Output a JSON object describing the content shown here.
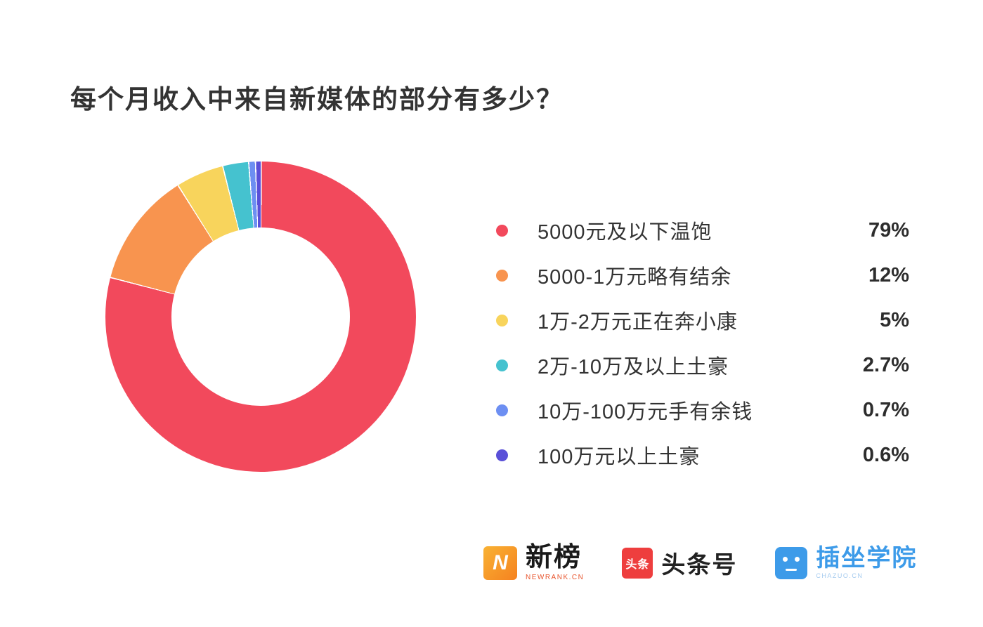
{
  "title": "每个月收入中来自新媒体的部分有多少？",
  "chart_data": {
    "type": "pie",
    "donut": true,
    "start_angle": "top",
    "direction": "clockwise",
    "legend_position": "right",
    "title": "每个月收入中来自新媒体的部分有多少？",
    "segments": [
      {
        "label": "5000元及以下温饱",
        "value": 79,
        "display": "79%",
        "color": "#F2495C"
      },
      {
        "label": "5000-1万元略有结余",
        "value": 12,
        "display": "12%",
        "color": "#F8944F"
      },
      {
        "label": "1万-2万元正在奔小康",
        "value": 5,
        "display": "5%",
        "color": "#F8D45C"
      },
      {
        "label": "2万-10万及以上土豪",
        "value": 2.7,
        "display": "2.7%",
        "color": "#45C2CF"
      },
      {
        "label": "10万-100万元手有余钱",
        "value": 0.7,
        "display": "0.7%",
        "color": "#6D8FF2"
      },
      {
        "label": "100万元以上土豪",
        "value": 0.6,
        "display": "0.6%",
        "color": "#5A50D8"
      }
    ]
  },
  "footer": {
    "logos": [
      {
        "name": "newrank",
        "icon_letter": "N",
        "text": "新榜",
        "subtext": "NEWRANK.CN"
      },
      {
        "name": "toutiao",
        "badge": "头条",
        "text": "头条号"
      },
      {
        "name": "chazuo",
        "text": "插坐学院",
        "subtext": "CHAZUO.CN"
      }
    ]
  }
}
